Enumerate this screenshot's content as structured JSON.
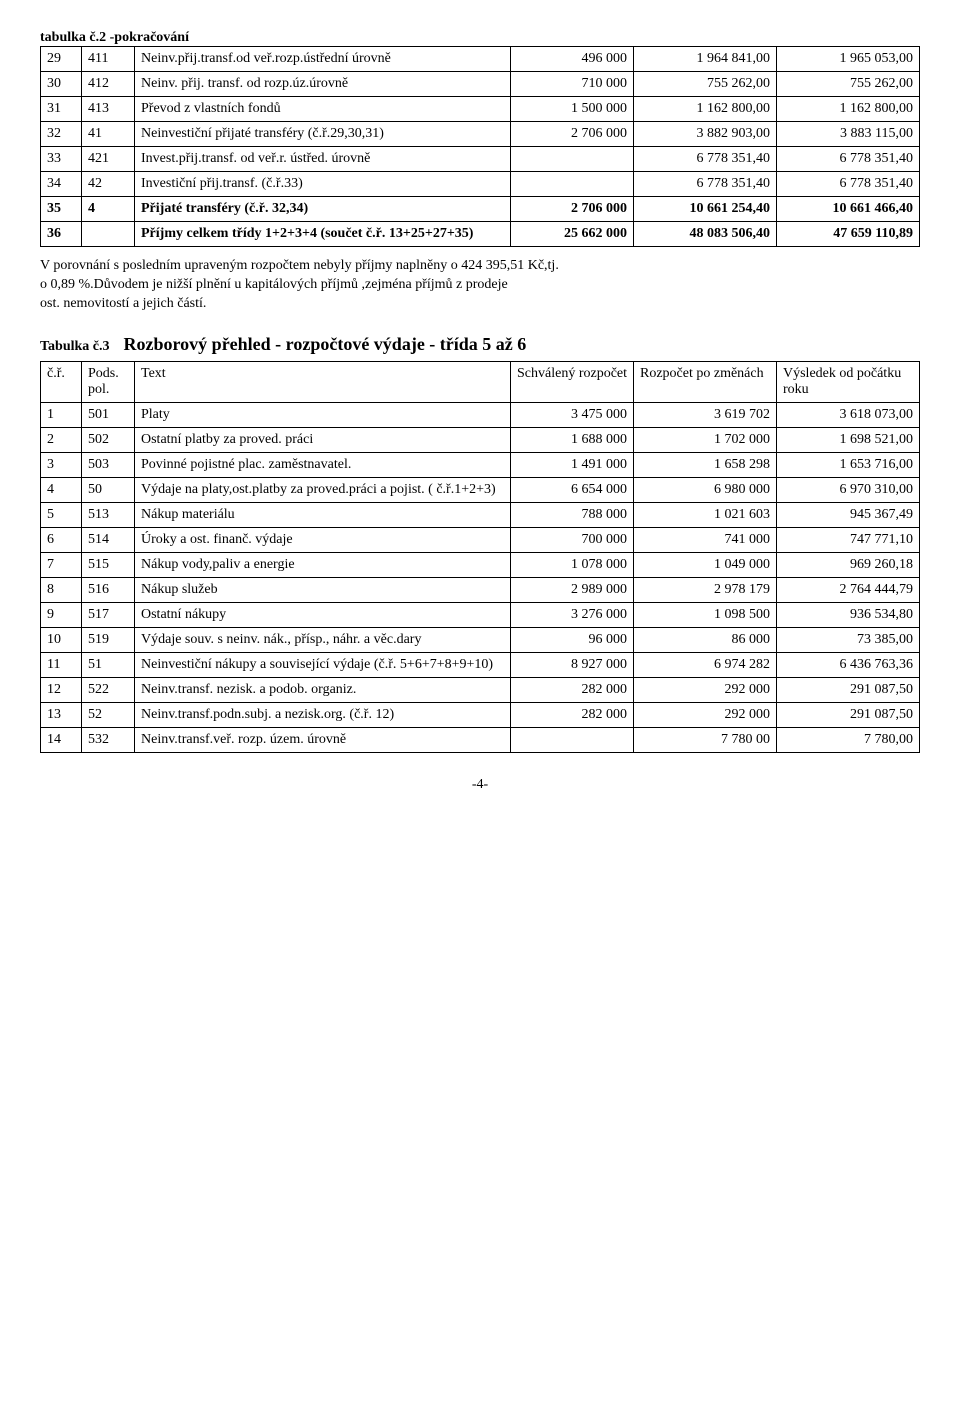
{
  "t2_title": "tabulka č.2 -pokračování",
  "t2_rows": [
    {
      "a": "29",
      "b": "411",
      "text": "Neinv.přij.transf.od veř.rozp.ústřední úrovně",
      "v1": "496 000",
      "v2": "1 964 841,00",
      "v3": "1 965 053,00"
    },
    {
      "a": "30",
      "b": "412",
      "text": "Neinv. přij. transf. od rozp.úz.úrovně",
      "v1": "710 000",
      "v2": "755 262,00",
      "v3": "755 262,00"
    },
    {
      "a": "31",
      "b": "413",
      "text": "Převod z vlastních fondů",
      "v1": "1 500 000",
      "v2": "1 162 800,00",
      "v3": "1 162 800,00"
    },
    {
      "a": "32",
      "b": "41",
      "text": "Neinvestiční přijaté transféry (č.ř.29,30,31)",
      "v1": "2 706 000",
      "v2": "3 882 903,00",
      "v3": "3 883 115,00"
    },
    {
      "a": "33",
      "b": "421",
      "text": "Invest.přij.transf. od veř.r. ústřed. úrovně",
      "v1": "",
      "v2": "6 778 351,40",
      "v3": "6 778 351,40"
    },
    {
      "a": "34",
      "b": "42",
      "text": "Investiční přij.transf. (č.ř.33)",
      "v1": "",
      "v2": "6 778 351,40",
      "v3": "6 778 351,40"
    },
    {
      "a": "35",
      "b": "4",
      "text": "Přijaté transféry (č.ř. 32,34)",
      "v1": "2 706 000",
      "v2": "10 661 254,40",
      "v3": "10 661 466,40",
      "bold": true
    },
    {
      "a": "36",
      "b": "",
      "text": "Příjmy celkem třídy 1+2+3+4 (součet č.ř. 13+25+27+35)",
      "v1": "25 662 000",
      "v2": "48 083 506,40",
      "v3": "47 659 110,89",
      "bold": true
    }
  ],
  "para_lines": {
    "l1": "V porovnání s posledním upraveným rozpočtem nebyly příjmy naplněny o 424 395,51 Kč,tj.",
    "l2": "o 0,89 %.Důvodem je nižší plnění u kapitálových příjmů ,zejména příjmů z prodeje",
    "l3": "ost. nemovitostí a jejich částí."
  },
  "t3_heading_label": "Tabulka č.3",
  "t3_heading_title": "Rozborový přehled - rozpočtové výdaje - třída 5 až 6",
  "t3_head": {
    "a": "č.ř.",
    "b": "Pods. pol.",
    "text": "Text",
    "v1": "Schválený rozpočet",
    "v2": "Rozpočet po změnách",
    "v3": "Výsledek od počátku roku"
  },
  "t3_rows": [
    {
      "a": "1",
      "b": "501",
      "text": "Platy",
      "v1": "3 475 000",
      "v2": "3 619 702",
      "v3": "3 618 073,00"
    },
    {
      "a": "2",
      "b": "502",
      "text": "Ostatní platby za proved. práci",
      "v1": "1 688 000",
      "v2": "1 702 000",
      "v3": "1 698 521,00"
    },
    {
      "a": "3",
      "b": "503",
      "text": "Povinné pojistné plac. zaměstnavatel.",
      "v1": "1 491 000",
      "v2": "1 658 298",
      "v3": "1 653 716,00"
    },
    {
      "a": "4",
      "b": "50",
      "text": "Výdaje na platy,ost.platby za proved.práci a pojist. ( č.ř.1+2+3)",
      "v1": "6 654 000",
      "v2": "6 980 000",
      "v3": "6 970 310,00"
    },
    {
      "a": "5",
      "b": "513",
      "text": "Nákup materiálu",
      "v1": "788 000",
      "v2": "1 021 603",
      "v3": "945 367,49"
    },
    {
      "a": "6",
      "b": "514",
      "text": "Úroky a ost. finanč. výdaje",
      "v1": "700 000",
      "v2": "741 000",
      "v3": "747 771,10"
    },
    {
      "a": "7",
      "b": "515",
      "text": "Nákup vody,paliv a energie",
      "v1": "1 078 000",
      "v2": "1 049 000",
      "v3": "969 260,18"
    },
    {
      "a": "8",
      "b": "516",
      "text": "Nákup služeb",
      "v1": "2 989 000",
      "v2": "2 978 179",
      "v3": "2 764 444,79"
    },
    {
      "a": "9",
      "b": "517",
      "text": "Ostatní nákupy",
      "v1": "3 276 000",
      "v2": "1 098 500",
      "v3": "936 534,80"
    },
    {
      "a": "10",
      "b": "519",
      "text": "Výdaje souv. s neinv. nák., přísp., náhr. a věc.dary",
      "v1": "96 000",
      "v2": "86 000",
      "v3": "73 385,00"
    },
    {
      "a": "11",
      "b": "51",
      "text": "Neinvestiční nákupy a související výdaje (č.ř. 5+6+7+8+9+10)",
      "v1": "8 927 000",
      "v2": "6 974 282",
      "v3": "6 436 763,36"
    },
    {
      "a": "12",
      "b": "522",
      "text": "Neinv.transf. nezisk. a podob. organiz.",
      "v1": "282 000",
      "v2": "292 000",
      "v3": "291 087,50"
    },
    {
      "a": "13",
      "b": "52",
      "text": "Neinv.transf.podn.subj. a nezisk.org. (č.ř. 12)",
      "v1": "282 000",
      "v2": "292 000",
      "v3": "291 087,50"
    },
    {
      "a": "14",
      "b": "532",
      "text": "Neinv.transf.veř. rozp. územ. úrovně",
      "v1": "",
      "v2": "7 780 00",
      "v3": "7 780,00"
    }
  ],
  "footer": "-4-"
}
